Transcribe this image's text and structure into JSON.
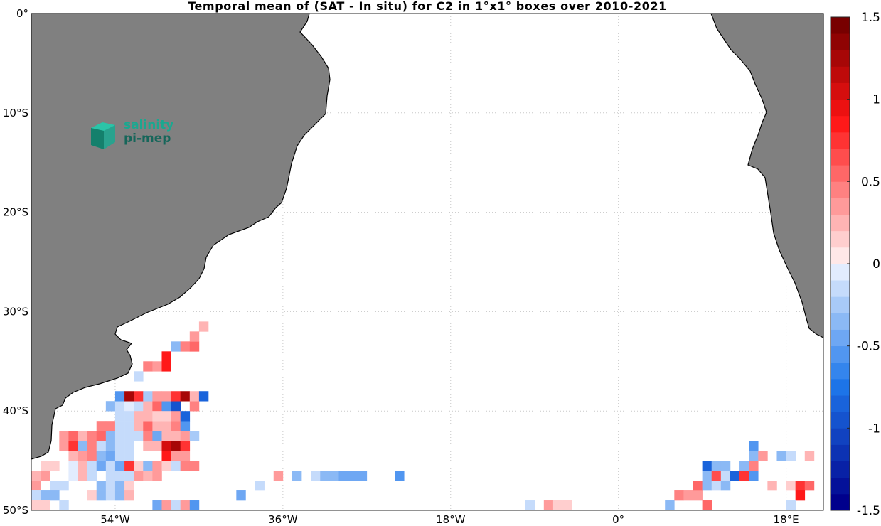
{
  "title": "Temporal mean of (SAT - In situ) for C2 in 1°x1° boxes over 2010-2021",
  "logo": {
    "line1": "salinity",
    "line2": "pi-mep"
  },
  "axes": {
    "lon_range": [
      -63,
      22
    ],
    "lat_range": [
      -50,
      0
    ],
    "lat_ticks": [
      {
        "value": 0,
        "label": "0°"
      },
      {
        "value": -10,
        "label": "10°S"
      },
      {
        "value": -20,
        "label": "20°S"
      },
      {
        "value": -30,
        "label": "30°S"
      },
      {
        "value": -40,
        "label": "40°S"
      },
      {
        "value": -50,
        "label": "50°S"
      }
    ],
    "lon_ticks": [
      {
        "value": -54,
        "label": "54°W"
      },
      {
        "value": -36,
        "label": "36°W"
      },
      {
        "value": -18,
        "label": "18°W"
      },
      {
        "value": 0,
        "label": "0°"
      },
      {
        "value": 18,
        "label": "18°E"
      }
    ],
    "grid": true
  },
  "colorbar": {
    "range": [
      -1.5,
      1.5
    ],
    "levels": 30,
    "ticks": [
      {
        "value": 1.5,
        "label": "1.5"
      },
      {
        "value": 1,
        "label": "1"
      },
      {
        "value": 0.5,
        "label": "0.5"
      },
      {
        "value": 0,
        "label": "0"
      },
      {
        "value": -0.5,
        "label": "-0.5"
      },
      {
        "value": -1,
        "label": "-1"
      },
      {
        "value": -1.5,
        "label": "-1.5"
      }
    ]
  },
  "colors": {
    "land": "#808080",
    "ocean": "#ffffff",
    "grid": "#c8c8c8"
  },
  "chart_data": {
    "type": "heatmap",
    "title": "Temporal mean of (SAT - In situ) for C2 in 1°x1° boxes over 2010-2021",
    "units": "(SAT - In situ)",
    "cells": [
      [
        -56,
        -41,
        0.45
      ],
      [
        -55,
        -41,
        0.45
      ],
      [
        -54,
        -41,
        -0.2
      ],
      [
        -53,
        -41,
        -0.15
      ],
      [
        -52,
        -41,
        0.25
      ],
      [
        -51,
        -41,
        0.5
      ],
      [
        -50,
        -41,
        0.25
      ],
      [
        -49,
        -41,
        0.2
      ],
      [
        -48,
        -41,
        0.4
      ],
      [
        -47,
        -41,
        -0.6
      ],
      [
        -55,
        -39,
        -0.3
      ],
      [
        -54,
        -39,
        -0.2
      ],
      [
        -53,
        -39,
        -0.05
      ],
      [
        -52,
        -39,
        -0.1
      ],
      [
        -51,
        -39,
        0.2
      ],
      [
        -50,
        -39,
        0.5
      ],
      [
        -49,
        -39,
        -0.6
      ],
      [
        -48,
        -39,
        -0.9
      ],
      [
        -46,
        -39,
        0.4
      ],
      [
        -54,
        -40,
        -0.2
      ],
      [
        -53,
        -40,
        -0.15
      ],
      [
        -52,
        -40,
        0.25
      ],
      [
        -51,
        -40,
        0.2
      ],
      [
        -50,
        -40,
        0.1
      ],
      [
        -49,
        -40,
        0.15
      ],
      [
        -48,
        -40,
        0.3
      ],
      [
        -47,
        -40,
        -0.8
      ],
      [
        -54,
        -38,
        -0.6
      ],
      [
        -53,
        -38,
        1.3
      ],
      [
        -52,
        -38,
        0.7
      ],
      [
        -51,
        -38,
        -0.25
      ],
      [
        -50,
        -38,
        0.3
      ],
      [
        -49,
        -38,
        0.3
      ],
      [
        -48,
        -38,
        0.7
      ],
      [
        -47,
        -38,
        1.3
      ],
      [
        -46,
        -38,
        0.25
      ],
      [
        -45,
        -38,
        -0.8
      ],
      [
        -52,
        -36,
        -0.15
      ],
      [
        -51,
        -35,
        0.45
      ],
      [
        -50,
        -35,
        0.35
      ],
      [
        -49,
        -35,
        0.9
      ],
      [
        -49,
        -34,
        0.9
      ],
      [
        -48,
        -33,
        -0.3
      ],
      [
        -47,
        -33,
        0.4
      ],
      [
        -46,
        -33,
        0.55
      ],
      [
        -46,
        -32,
        0.3
      ],
      [
        -45,
        -31,
        0.25
      ],
      [
        -60,
        -42,
        0.3
      ],
      [
        -59,
        -42,
        0.5
      ],
      [
        -58,
        -42,
        0.2
      ],
      [
        -57,
        -42,
        0.4
      ],
      [
        -56,
        -42,
        0.5
      ],
      [
        -55,
        -42,
        -0.3
      ],
      [
        -54,
        -42,
        -0.2
      ],
      [
        -53,
        -42,
        -0.2
      ],
      [
        -52,
        -42,
        -0.1
      ],
      [
        -51,
        -42,
        0.45
      ],
      [
        -50,
        -42,
        -0.5
      ],
      [
        -49,
        -42,
        0.2
      ],
      [
        -48,
        -42,
        0.2
      ],
      [
        -47,
        -42,
        0.3
      ],
      [
        -46,
        -42,
        -0.25
      ],
      [
        -60,
        -43,
        0.3
      ],
      [
        -59,
        -43,
        0.75
      ],
      [
        -58,
        -43,
        -0.3
      ],
      [
        -57,
        -43,
        0.4
      ],
      [
        -56,
        -43,
        -0.2
      ],
      [
        -55,
        -43,
        -0.3
      ],
      [
        -54,
        -43,
        -0.2
      ],
      [
        -53,
        -43,
        -0.2
      ],
      [
        -51,
        -43,
        0.2
      ],
      [
        -50,
        -43,
        0.25
      ],
      [
        -49,
        -43,
        1.0
      ],
      [
        -48,
        -43,
        1.2
      ],
      [
        -47,
        -43,
        0.75
      ],
      [
        -59,
        -44,
        0.2
      ],
      [
        -58,
        -44,
        0.3
      ],
      [
        -57,
        -44,
        0.45
      ],
      [
        -56,
        -44,
        -0.3
      ],
      [
        -55,
        -44,
        -0.5
      ],
      [
        -54,
        -44,
        -0.2
      ],
      [
        -53,
        -44,
        -0.15
      ],
      [
        -49,
        -44,
        0.85
      ],
      [
        -48,
        -44,
        0.3
      ],
      [
        -47,
        -44,
        0.35
      ],
      [
        -62,
        -45,
        0.15
      ],
      [
        -61,
        -45,
        0.15
      ],
      [
        -59,
        -45,
        -0.05
      ],
      [
        -58,
        -45,
        0.2
      ],
      [
        -57,
        -45,
        -0.2
      ],
      [
        -56,
        -45,
        -0.45
      ],
      [
        -55,
        -45,
        -0.2
      ],
      [
        -54,
        -45,
        -0.5
      ],
      [
        -53,
        -45,
        0.75
      ],
      [
        -52,
        -45,
        0.1
      ],
      [
        -51,
        -45,
        -0.3
      ],
      [
        -50,
        -45,
        0.3
      ],
      [
        -49,
        -45,
        0.15
      ],
      [
        -48,
        -45,
        -0.2
      ],
      [
        -47,
        -45,
        0.4
      ],
      [
        -46,
        -45,
        0.4
      ],
      [
        -63,
        -46,
        0.2
      ],
      [
        -62,
        -46,
        0.3
      ],
      [
        -59,
        -46,
        -0.05
      ],
      [
        -58,
        -46,
        0.2
      ],
      [
        -57,
        -46,
        -0.15
      ],
      [
        -55,
        -46,
        -0.2
      ],
      [
        -54,
        -46,
        -0.1
      ],
      [
        -53,
        -46,
        -0.2
      ],
      [
        -52,
        -46,
        0.35
      ],
      [
        -51,
        -46,
        0.25
      ],
      [
        -50,
        -46,
        0.3
      ],
      [
        -63,
        -47,
        0.3
      ],
      [
        -61,
        -47,
        -0.15
      ],
      [
        -60,
        -47,
        -0.2
      ],
      [
        -56,
        -47,
        -0.4
      ],
      [
        -55,
        -47,
        -0.2
      ],
      [
        -54,
        -47,
        -0.3
      ],
      [
        -53,
        -47,
        0.1
      ],
      [
        -63,
        -48,
        -0.15
      ],
      [
        -62,
        -48,
        -0.4
      ],
      [
        -61,
        -48,
        -0.3
      ],
      [
        -57,
        -48,
        0.1
      ],
      [
        -56,
        -48,
        -0.4
      ],
      [
        -55,
        -48,
        -0.2
      ],
      [
        -54,
        -48,
        -0.3
      ],
      [
        -53,
        -48,
        0.2
      ],
      [
        -63,
        -49,
        0.15
      ],
      [
        -62,
        -49,
        0.15
      ],
      [
        -60,
        -49,
        -0.15
      ],
      [
        -50,
        -49,
        -0.5
      ],
      [
        -49,
        -49,
        0.3
      ],
      [
        -48,
        -49,
        -0.2
      ],
      [
        -47,
        -49,
        0.3
      ],
      [
        -46,
        -49,
        -0.6
      ],
      [
        -41,
        -48,
        -0.5
      ],
      [
        -39,
        -47,
        -0.15
      ],
      [
        -37,
        -46,
        0.35
      ],
      [
        -35,
        -46,
        -0.3
      ],
      [
        -33,
        -46,
        -0.2
      ],
      [
        -32,
        -46,
        -0.3
      ],
      [
        -31,
        -46,
        -0.3
      ],
      [
        -30,
        -46,
        -0.45
      ],
      [
        -29,
        -46,
        -0.45
      ],
      [
        -28,
        -46,
        -0.45
      ],
      [
        -24,
        -46,
        -0.6
      ],
      [
        -10,
        -49,
        -0.2
      ],
      [
        -8,
        -49,
        0.3
      ],
      [
        -7,
        -49,
        0.15
      ],
      [
        -6,
        -49,
        0.15
      ],
      [
        5,
        -49,
        -0.3
      ],
      [
        6,
        -48,
        0.4
      ],
      [
        7,
        -48,
        0.3
      ],
      [
        8,
        -48,
        0.3
      ],
      [
        9,
        -49,
        0.5
      ],
      [
        8,
        -47,
        0.5
      ],
      [
        9,
        -47,
        -0.3
      ],
      [
        10,
        -47,
        -0.15
      ],
      [
        11,
        -47,
        -0.3
      ],
      [
        9,
        -46,
        -0.3
      ],
      [
        10,
        -46,
        0.6
      ],
      [
        11,
        -46,
        -0.2
      ],
      [
        12,
        -46,
        -0.8
      ],
      [
        13,
        -46,
        0.7
      ],
      [
        14,
        -46,
        -0.6
      ],
      [
        9,
        -45,
        -0.8
      ],
      [
        10,
        -45,
        -0.3
      ],
      [
        11,
        -45,
        -0.3
      ],
      [
        13,
        -45,
        -0.3
      ],
      [
        14,
        -45,
        0.4
      ],
      [
        14,
        -44,
        -0.3
      ],
      [
        15,
        -44,
        0.3
      ],
      [
        17,
        -44,
        -0.3
      ],
      [
        18,
        -44,
        -0.1
      ],
      [
        20,
        -44,
        0.25
      ],
      [
        14,
        -43,
        -0.6
      ],
      [
        16,
        -47,
        0.2
      ],
      [
        18,
        -47,
        0.1
      ],
      [
        19,
        -47,
        0.7
      ],
      [
        20,
        -47,
        0.5
      ],
      [
        19,
        -48,
        0.85
      ],
      [
        18,
        -49,
        -0.2
      ]
    ]
  }
}
